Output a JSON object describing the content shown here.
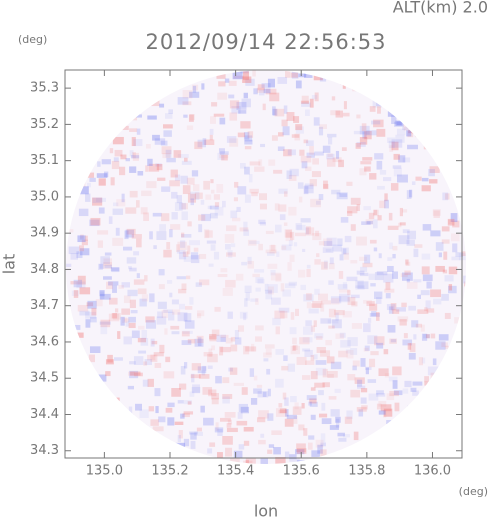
{
  "chart_data": {
    "type": "radar-field",
    "title": "2012/09/14 22:56:53",
    "subtitle": "ALT(km) 2.0",
    "y_unit": "(deg)",
    "x_unit": "(deg)",
    "x_label": "lon",
    "y_label": "lat",
    "xlim": [
      134.88,
      136.09
    ],
    "ylim": [
      34.28,
      35.35
    ],
    "xticks": [
      {
        "value": 135,
        "label": "135.0"
      },
      135.2,
      135.4,
      135.6,
      135.8,
      {
        "value": 136,
        "label": "136.0"
      }
    ],
    "yticks": [
      34.3,
      34.4,
      34.5,
      34.6,
      34.7,
      34.8,
      34.9,
      {
        "value": 35,
        "label": "35.0"
      },
      35.1,
      35.2,
      35.3
    ]
  }
}
